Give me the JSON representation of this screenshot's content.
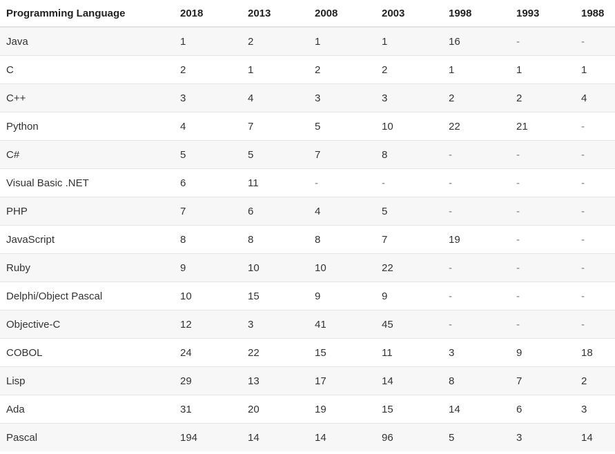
{
  "table": {
    "headers": [
      "Programming Language",
      "2018",
      "2013",
      "2008",
      "2003",
      "1998",
      "1993",
      "1988"
    ],
    "rows": [
      [
        "Java",
        "1",
        "2",
        "1",
        "1",
        "16",
        "-",
        "-"
      ],
      [
        "C",
        "2",
        "1",
        "2",
        "2",
        "1",
        "1",
        "1"
      ],
      [
        "C++",
        "3",
        "4",
        "3",
        "3",
        "2",
        "2",
        "4"
      ],
      [
        "Python",
        "4",
        "7",
        "5",
        "10",
        "22",
        "21",
        "-"
      ],
      [
        "C#",
        "5",
        "5",
        "7",
        "8",
        "-",
        "-",
        "-"
      ],
      [
        "Visual Basic .NET",
        "6",
        "11",
        "-",
        "-",
        "-",
        "-",
        "-"
      ],
      [
        "PHP",
        "7",
        "6",
        "4",
        "5",
        "-",
        "-",
        "-"
      ],
      [
        "JavaScript",
        "8",
        "8",
        "8",
        "7",
        "19",
        "-",
        "-"
      ],
      [
        "Ruby",
        "9",
        "10",
        "10",
        "22",
        "-",
        "-",
        "-"
      ],
      [
        "Delphi/Object Pascal",
        "10",
        "15",
        "9",
        "9",
        "-",
        "-",
        "-"
      ],
      [
        "Objective-C",
        "12",
        "3",
        "41",
        "45",
        "-",
        "-",
        "-"
      ],
      [
        "COBOL",
        "24",
        "22",
        "15",
        "11",
        "3",
        "9",
        "18"
      ],
      [
        "Lisp",
        "29",
        "13",
        "17",
        "14",
        "8",
        "7",
        "2"
      ],
      [
        "Ada",
        "31",
        "20",
        "19",
        "15",
        "14",
        "6",
        "3"
      ],
      [
        "Pascal",
        "194",
        "14",
        "14",
        "96",
        "5",
        "3",
        "14"
      ]
    ]
  },
  "colors": {
    "header_text": "#222222",
    "cell_text": "#333333",
    "stripe": "#f7f7f7",
    "border": "#e4e4e4"
  }
}
